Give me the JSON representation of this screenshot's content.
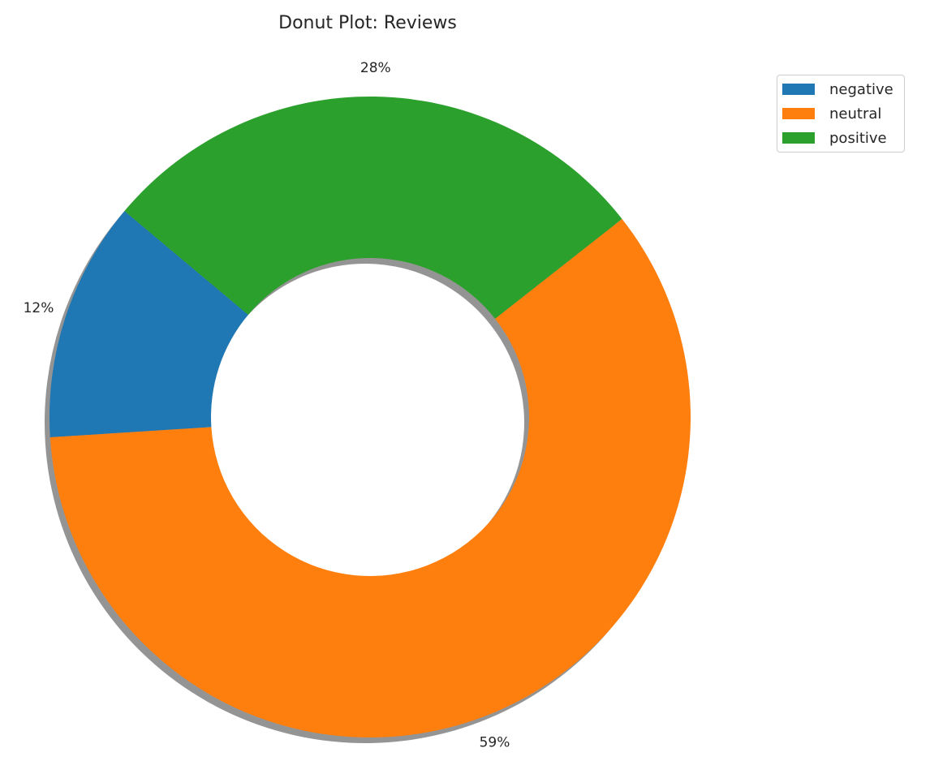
{
  "chart_data": {
    "type": "pie",
    "variant": "donut",
    "title": "Donut Plot: Reviews",
    "labels": [
      "negative",
      "neutral",
      "positive"
    ],
    "values": [
      12,
      59,
      28
    ],
    "display_labels": [
      "12%",
      "59%",
      "28%"
    ],
    "colors": [
      "#1f77b4",
      "#ff7f0e",
      "#2ca02c"
    ],
    "shadow": true,
    "legend": {
      "placement": "outside-top-right",
      "entries": [
        "negative",
        "neutral",
        "positive"
      ]
    }
  }
}
